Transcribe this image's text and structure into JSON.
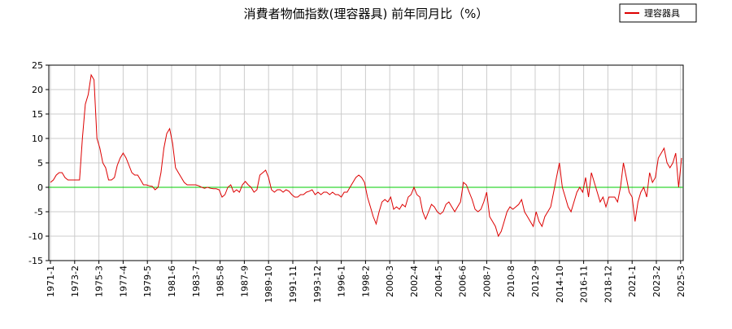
{
  "chart_data": {
    "type": "line",
    "title": "消費者物価指数(理容器具) 前年同月比（%）",
    "x": [
      "1971-1",
      "1971-4",
      "1971-7",
      "1971-10",
      "1972-1",
      "1972-4",
      "1972-7",
      "1972-10",
      "1973-1",
      "1973-4",
      "1973-7",
      "1973-10",
      "1974-1",
      "1974-4",
      "1974-7",
      "1974-10",
      "1975-1",
      "1975-4",
      "1975-7",
      "1975-10",
      "1976-1",
      "1976-4",
      "1976-7",
      "1976-10",
      "1977-1",
      "1977-4",
      "1977-7",
      "1977-10",
      "1978-1",
      "1978-4",
      "1978-7",
      "1978-10",
      "1979-1",
      "1979-4",
      "1979-7",
      "1979-10",
      "1980-1",
      "1980-4",
      "1980-7",
      "1980-10",
      "1981-1",
      "1981-4",
      "1981-7",
      "1981-10",
      "1982-1",
      "1982-4",
      "1982-7",
      "1982-10",
      "1983-1",
      "1983-4",
      "1983-7",
      "1983-10",
      "1984-1",
      "1984-4",
      "1984-7",
      "1984-10",
      "1985-1",
      "1985-4",
      "1985-7",
      "1985-10",
      "1986-1",
      "1986-4",
      "1986-7",
      "1986-10",
      "1987-1",
      "1987-4",
      "1987-7",
      "1987-10",
      "1988-1",
      "1988-4",
      "1988-7",
      "1988-10",
      "1989-1",
      "1989-4",
      "1989-7",
      "1989-10",
      "1990-1",
      "1990-4",
      "1990-7",
      "1990-10",
      "1991-1",
      "1991-4",
      "1991-7",
      "1991-10",
      "1992-1",
      "1992-4",
      "1992-7",
      "1992-10",
      "1993-1",
      "1993-4",
      "1993-7",
      "1993-10",
      "1994-1",
      "1994-4",
      "1994-7",
      "1994-10",
      "1995-1",
      "1995-4",
      "1995-7",
      "1995-10",
      "1996-1",
      "1996-4",
      "1996-7",
      "1996-10",
      "1997-1",
      "1997-4",
      "1997-7",
      "1997-10",
      "1998-1",
      "1998-4",
      "1998-7",
      "1998-10",
      "1999-1",
      "1999-4",
      "1999-7",
      "1999-10",
      "2000-1",
      "2000-4",
      "2000-7",
      "2000-10",
      "2001-1",
      "2001-4",
      "2001-7",
      "2001-10",
      "2002-1",
      "2002-4",
      "2002-7",
      "2002-10",
      "2003-1",
      "2003-4",
      "2003-7",
      "2003-10",
      "2004-1",
      "2004-4",
      "2004-7",
      "2004-10",
      "2005-1",
      "2005-4",
      "2005-7",
      "2005-10",
      "2006-1",
      "2006-4",
      "2006-7",
      "2006-10",
      "2007-1",
      "2007-4",
      "2007-7",
      "2007-10",
      "2008-1",
      "2008-4",
      "2008-7",
      "2008-10",
      "2009-1",
      "2009-4",
      "2009-7",
      "2009-10",
      "2010-1",
      "2010-4",
      "2010-7",
      "2010-10",
      "2011-1",
      "2011-4",
      "2011-7",
      "2011-10",
      "2012-1",
      "2012-4",
      "2012-7",
      "2012-10",
      "2013-1",
      "2013-4",
      "2013-7",
      "2013-10",
      "2014-1",
      "2014-4",
      "2014-7",
      "2014-10",
      "2015-1",
      "2015-4",
      "2015-7",
      "2015-10",
      "2016-1",
      "2016-4",
      "2016-7",
      "2016-10",
      "2017-1",
      "2017-4",
      "2017-7",
      "2017-10",
      "2018-1",
      "2018-4",
      "2018-7",
      "2018-10",
      "2019-1",
      "2019-4",
      "2019-7",
      "2019-10",
      "2020-1",
      "2020-4",
      "2020-7",
      "2020-10",
      "2021-1",
      "2021-4",
      "2021-7",
      "2021-10",
      "2022-1",
      "2022-4",
      "2022-7",
      "2022-10",
      "2023-1",
      "2023-4",
      "2023-7",
      "2023-10",
      "2024-1",
      "2024-4",
      "2024-7",
      "2024-10",
      "2025-1",
      "2025-4"
    ],
    "series": [
      {
        "name": "理容器具",
        "color": "#dd0000",
        "values": [
          1,
          1.5,
          2.5,
          3,
          3,
          2,
          1.5,
          1.5,
          1.5,
          1.5,
          1.5,
          10,
          17,
          19,
          23,
          22,
          10,
          8,
          5,
          4,
          1.5,
          1.5,
          2,
          4.5,
          6,
          7,
          6,
          4.5,
          3,
          2.5,
          2.5,
          1.5,
          0.5,
          0.5,
          0.3,
          0.2,
          -0.5,
          0,
          3,
          8,
          11,
          12,
          9,
          4,
          3,
          2,
          1,
          0.5,
          0.5,
          0.5,
          0.5,
          0.3,
          0,
          -0.2,
          0,
          -0.2,
          -0.3,
          -0.3,
          -0.5,
          -2,
          -1.5,
          0,
          0.5,
          -1,
          -0.5,
          -1,
          0.5,
          1.2,
          0.5,
          0,
          -1,
          -0.5,
          2.5,
          3,
          3.5,
          2,
          -0.5,
          -1,
          -0.5,
          -0.5,
          -1,
          -0.5,
          -0.8,
          -1.5,
          -2,
          -2,
          -1.5,
          -1.5,
          -1,
          -0.8,
          -0.5,
          -1.5,
          -1,
          -1.5,
          -1,
          -1,
          -1.5,
          -1,
          -1.5,
          -1.5,
          -2,
          -1,
          -1,
          0,
          1,
          2,
          2.5,
          2,
          1,
          -2,
          -4,
          -6,
          -7.5,
          -5,
          -3,
          -2.5,
          -3,
          -2,
          -4.5,
          -4,
          -4.5,
          -3.5,
          -4,
          -2,
          -1.5,
          0,
          -1.5,
          -2,
          -5,
          -6.5,
          -5,
          -3.5,
          -4,
          -5,
          -5.5,
          -5,
          -3.5,
          -3,
          -4,
          -5,
          -4,
          -3,
          1,
          0.5,
          -1,
          -2.5,
          -4.5,
          -5,
          -4.5,
          -3,
          -1,
          -6,
          -7,
          -8,
          -10,
          -9,
          -7,
          -5,
          -4,
          -4.5,
          -4,
          -3.5,
          -2.5,
          -5,
          -6,
          -7,
          -8,
          -5,
          -7,
          -8,
          -6,
          -5,
          -4,
          -1,
          2,
          5,
          0,
          -2,
          -4,
          -5,
          -3,
          -1,
          0,
          -1,
          2,
          -2,
          3,
          1,
          -1,
          -3,
          -2,
          -4,
          -2,
          -2,
          -2,
          -3,
          0,
          5,
          2,
          -1,
          -2,
          -7,
          -3,
          -1,
          0,
          -2,
          3,
          1,
          2,
          6,
          7,
          8,
          5,
          4,
          5,
          7,
          0,
          6
        ]
      }
    ],
    "xticks": [
      "1971-1",
      "1973-2",
      "1975-3",
      "1977-4",
      "1979-5",
      "1981-6",
      "1983-7",
      "1985-8",
      "1987-9",
      "1989-10",
      "1991-11",
      "1993-12",
      "1996-1",
      "1998-2",
      "2000-3",
      "2002-4",
      "2004-5",
      "2006-6",
      "2008-7",
      "2010-8",
      "2012-9",
      "2014-10",
      "2016-11",
      "2018-12",
      "2021-1",
      "2023-2",
      "2025-3"
    ],
    "ylim": [
      -15,
      25
    ],
    "yticks": [
      -15,
      -10,
      -5,
      0,
      5,
      10,
      15,
      20,
      25
    ],
    "grid": true,
    "reference_line": {
      "y": 0,
      "color": "#00cc00"
    },
    "legend": "top-right"
  }
}
